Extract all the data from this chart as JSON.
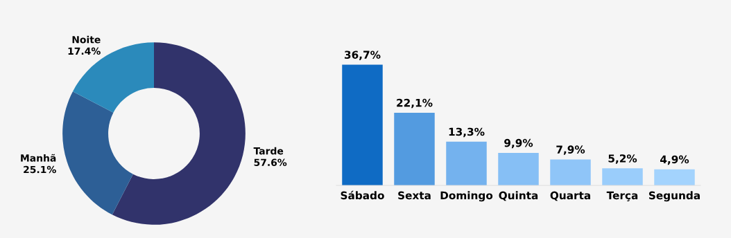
{
  "chart_data": [
    {
      "type": "donut",
      "categories": [
        "Tarde",
        "Manhã",
        "Noite"
      ],
      "values": [
        57.6,
        25.1,
        17.4
      ],
      "colors": [
        "#31336b",
        "#2d5f96",
        "#2b8abb"
      ],
      "value_labels": [
        "57.6%",
        "25.1%",
        "17.4%"
      ]
    },
    {
      "type": "bar",
      "categories": [
        "Sábado",
        "Sexta",
        "Domingo",
        "Quinta",
        "Quarta",
        "Terça",
        "Segunda"
      ],
      "values": [
        36.7,
        22.1,
        13.3,
        9.9,
        7.9,
        5.2,
        4.9
      ],
      "colors": [
        "#0f6bc4",
        "#539be0",
        "#74b2ee",
        "#86bff5",
        "#8fc5f8",
        "#9acdfb",
        "#a3d3fd"
      ],
      "value_labels": [
        "36,7%",
        "22,1%",
        "13,3%",
        "9,9%",
        "7,9%",
        "5,2%",
        "4,9%"
      ]
    }
  ]
}
